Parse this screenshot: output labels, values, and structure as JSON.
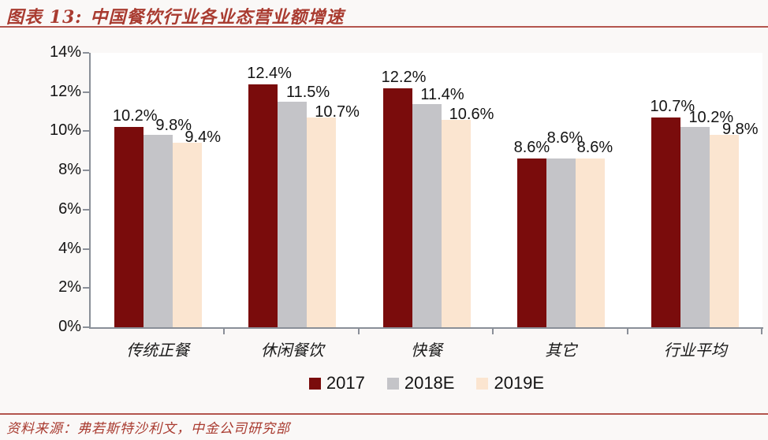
{
  "header": {
    "figure_label": "图表 13:",
    "title": "中国餐饮行业各业态营业额增速"
  },
  "chart_data": {
    "type": "bar",
    "title": "中国餐饮行业各业态营业额增速",
    "categories": [
      "传统正餐",
      "休闲餐饮",
      "快餐",
      "其它",
      "行业平均"
    ],
    "series": [
      {
        "name": "2017",
        "color": "#7A0C0C",
        "values": [
          10.2,
          12.4,
          12.2,
          8.6,
          10.7
        ]
      },
      {
        "name": "2018E",
        "color": "#C4C4C8",
        "values": [
          9.8,
          11.5,
          11.4,
          8.6,
          10.2
        ]
      },
      {
        "name": "2019E",
        "color": "#FBE5D0",
        "values": [
          9.4,
          10.7,
          10.6,
          8.6,
          9.8
        ]
      }
    ],
    "ylabel": "",
    "xlabel": "",
    "ylim": [
      0,
      14
    ],
    "ytick_step": 2,
    "ytick_labels": [
      "0%",
      "2%",
      "4%",
      "6%",
      "8%",
      "10%",
      "12%",
      "14%"
    ],
    "value_suffix": "%",
    "data_labels": true,
    "grid": false,
    "legend_position": "bottom"
  },
  "footer": {
    "source": "资料来源：弗若斯特沙利文，中金公司研究部"
  },
  "colors": {
    "accent_text": "#A93B30",
    "rule_line": "#B3554E",
    "axis": "#8A8F98",
    "plot_background": "#FFFFFF",
    "page_background": "#FAF8F7"
  }
}
